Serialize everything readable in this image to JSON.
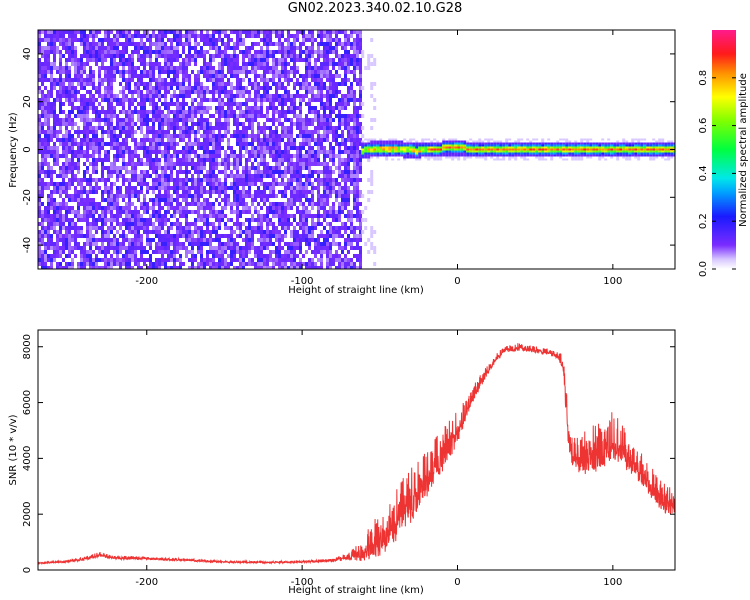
{
  "chart_data": [
    {
      "type": "heatmap",
      "title": "GN02.2023.340.02.10.G28",
      "xlabel": "Height of straight line (km)",
      "ylabel": "Frequency (Hz)",
      "xlim": [
        -270,
        140
      ],
      "ylim": [
        -50,
        50
      ],
      "xticks": [
        -200,
        -100,
        0,
        100
      ],
      "xtick_labels": [
        "-200",
        "-100",
        "0",
        "100"
      ],
      "yticks": [
        -40,
        -20,
        0,
        20,
        40
      ],
      "ytick_labels": [
        "-40",
        "-20",
        "0",
        "20",
        "40"
      ],
      "colorbar": {
        "label": "Normalized spectral amplitude",
        "range": [
          0,
          1
        ],
        "ticks": [
          0.0,
          0.2,
          0.4,
          0.6,
          0.8
        ],
        "tick_labels": [
          "0.0",
          "0.2",
          "0.4",
          "0.6",
          "0.8"
        ],
        "colormap": "white-purple-blue-cyan-green-yellow-orange-red-magenta"
      },
      "features": {
        "noise_region_x": [
          -270,
          -62
        ],
        "noise_amplitude": 0.15,
        "signal_band_x": [
          -62,
          140
        ],
        "signal_center_hz": 0,
        "signal_peak_amplitude": 0.9
      }
    },
    {
      "type": "line",
      "xlabel": "Height of straight line (km)",
      "ylabel": "SNR (10 * v/v)",
      "xlim": [
        -270,
        140
      ],
      "ylim": [
        0,
        8600
      ],
      "xticks": [
        -200,
        -100,
        0,
        100
      ],
      "xtick_labels": [
        "-200",
        "-100",
        "0",
        "100"
      ],
      "yticks": [
        0,
        2000,
        4000,
        6000,
        8000
      ],
      "ytick_labels": [
        "0",
        "2000",
        "4000",
        "6000",
        "8000"
      ],
      "color": "#ee3333",
      "series": [
        {
          "x": [
            -270,
            -250,
            -240,
            -230,
            -220,
            -200,
            -180,
            -150,
            -120,
            -100,
            -80,
            -70,
            -65,
            -60,
            -55,
            -50,
            -45,
            -40,
            -35,
            -30,
            -25,
            -20,
            -15,
            -10,
            -5,
            0,
            5,
            10,
            15,
            20,
            25,
            30,
            35,
            40,
            45,
            50,
            55,
            60,
            65,
            68,
            70,
            72,
            75,
            80,
            85,
            90,
            95,
            100,
            105,
            110,
            115,
            120,
            125,
            130,
            135,
            140
          ],
          "y": [
            250,
            320,
            420,
            560,
            450,
            420,
            380,
            300,
            280,
            300,
            360,
            480,
            600,
            750,
            1000,
            1300,
            1600,
            1900,
            2300,
            2700,
            3100,
            3500,
            3900,
            4300,
            4700,
            5100,
            5700,
            6300,
            6800,
            7200,
            7600,
            7900,
            7950,
            8000,
            7950,
            7900,
            7850,
            7800,
            7700,
            7400,
            6000,
            4600,
            4300,
            4200,
            4300,
            4400,
            4500,
            4800,
            4600,
            4200,
            3900,
            3500,
            3100,
            2800,
            2500,
            2400
          ],
          "noise": [
            30,
            50,
            70,
            90,
            70,
            60,
            50,
            40,
            40,
            40,
            60,
            150,
            300,
            500,
            700,
            800,
            900,
            1000,
            1000,
            1000,
            1000,
            900,
            900,
            800,
            700,
            600,
            400,
            300,
            250,
            200,
            150,
            120,
            120,
            150,
            120,
            120,
            120,
            120,
            150,
            300,
            600,
            700,
            700,
            800,
            900,
            900,
            900,
            900,
            800,
            700,
            600,
            600,
            600,
            600,
            600,
            500
          ]
        }
      ]
    }
  ]
}
